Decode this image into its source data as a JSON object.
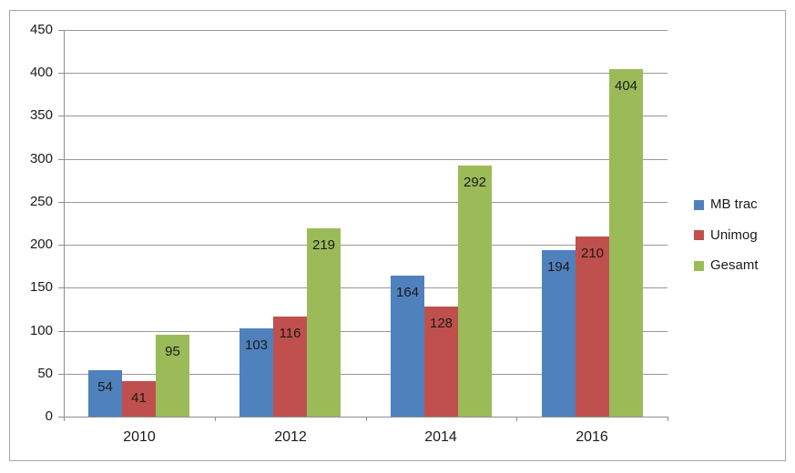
{
  "chart_data": {
    "type": "bar",
    "title": "",
    "xlabel": "",
    "ylabel": "",
    "categories": [
      "2010",
      "2012",
      "2014",
      "2016"
    ],
    "series": [
      {
        "name": "MB trac",
        "color": "#4F81BD",
        "values": [
          54,
          103,
          164,
          194
        ]
      },
      {
        "name": "Unimog",
        "color": "#C0504D",
        "values": [
          41,
          116,
          128,
          210
        ]
      },
      {
        "name": "Gesamt",
        "color": "#9BBB59",
        "values": [
          95,
          219,
          292,
          404
        ]
      }
    ],
    "ylim": [
      0,
      450
    ],
    "yticks": [
      0,
      50,
      100,
      150,
      200,
      250,
      300,
      350,
      400,
      450
    ],
    "grid": true,
    "legend_position": "right",
    "data_labels": "inside-end"
  },
  "styles": {
    "background": "#FFFFFF",
    "frame_border_color": "#A6A6A6",
    "gridline_color": "#989898",
    "axis_color": "#8E8E8E",
    "text_color": "#1A1A1A"
  }
}
